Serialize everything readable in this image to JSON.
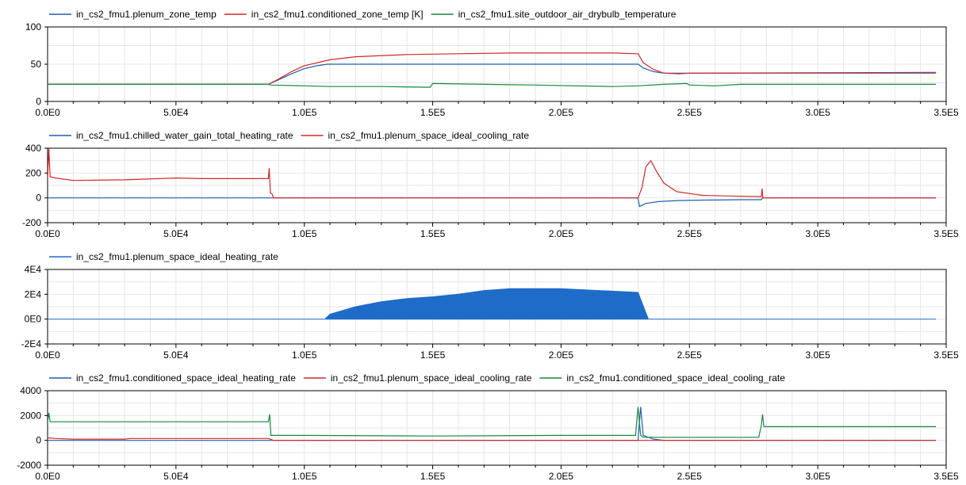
{
  "chart_data": [
    {
      "type": "line",
      "legend_placement": "top-left",
      "grid": true,
      "xlim": [
        0,
        350000
      ],
      "ylim": [
        0,
        100
      ],
      "xticks": [
        "0.0E0",
        "5.0E4",
        "1.0E5",
        "1.5E5",
        "2.0E5",
        "2.5E5",
        "3.0E5",
        "3.5E5"
      ],
      "yticks": [
        "0",
        "50",
        "100"
      ],
      "series": [
        {
          "name": "in_cs2_fmu1.plenum_zone_temp",
          "color": "#1f5fae",
          "x": [
            0,
            86000,
            88000,
            95000,
            100000,
            105000,
            109000,
            150000,
            200000,
            230000,
            232000,
            236000,
            240000,
            246000,
            250000,
            346000
          ],
          "y": [
            23,
            23,
            26,
            37,
            44,
            48,
            50,
            50,
            50,
            50,
            45,
            40,
            38,
            38,
            38,
            38
          ]
        },
        {
          "name": "in_cs2_fmu1.conditioned_zone_temp [K]",
          "color": "#d62728",
          "x": [
            0,
            86000,
            90000,
            95000,
            100000,
            110000,
            120000,
            140000,
            160000,
            180000,
            200000,
            220000,
            230000,
            232000,
            236000,
            240000,
            246000,
            250000,
            346000
          ],
          "y": [
            23,
            23,
            30,
            40,
            48,
            56,
            60,
            63,
            64,
            65,
            65,
            65,
            64,
            52,
            43,
            38,
            37,
            38,
            39
          ]
        },
        {
          "name": "in_cs2_fmu1.site_outdoor_air_drybulb_temperature",
          "color": "#148a3c",
          "x": [
            0,
            86000,
            87000,
            100000,
            110000,
            130000,
            149000,
            150000,
            170000,
            190000,
            220000,
            230000,
            240000,
            249000,
            250000,
            260000,
            270000,
            300000,
            346000
          ],
          "y": [
            23,
            23,
            22,
            21,
            20,
            20,
            19,
            24,
            23,
            22,
            20,
            21,
            23,
            24,
            22,
            21,
            23,
            23,
            23
          ]
        }
      ]
    },
    {
      "type": "line",
      "legend_placement": "top-left",
      "grid": true,
      "xlim": [
        0,
        350000
      ],
      "ylim": [
        -200,
        400
      ],
      "xticks": [
        "0.0E0",
        "5.0E4",
        "1.0E5",
        "1.5E5",
        "2.0E5",
        "2.5E5",
        "3.0E5",
        "3.5E5"
      ],
      "yticks": [
        "-200",
        "0",
        "200",
        "400"
      ],
      "series": [
        {
          "name": "in_cs2_fmu1.chilled_water_gain_total_heating_rate",
          "color": "#1f5fae",
          "x": [
            0,
            230000,
            230500,
            233000,
            238000,
            245000,
            255000,
            270000,
            278000,
            278500,
            346000
          ],
          "y": [
            0,
            0,
            -70,
            -45,
            -30,
            -22,
            -18,
            -15,
            -15,
            0,
            0
          ]
        },
        {
          "name": "in_cs2_fmu1.plenum_space_ideal_cooling_rate",
          "color": "#d62728",
          "x": [
            0,
            500,
            1000,
            3000,
            10000,
            30000,
            50000,
            60000,
            86000,
            86300,
            86800,
            87500,
            88000,
            230000,
            231500,
            233000,
            235000,
            237000,
            240000,
            245000,
            255000,
            265000,
            278000,
            278300,
            278600,
            346000
          ],
          "y": [
            150,
            400,
            170,
            160,
            140,
            145,
            160,
            155,
            155,
            240,
            40,
            30,
            0,
            0,
            80,
            250,
            300,
            220,
            120,
            50,
            20,
            15,
            10,
            75,
            0,
            0
          ]
        }
      ]
    },
    {
      "type": "area",
      "legend_placement": "top-left",
      "grid": true,
      "xlim": [
        0,
        350000
      ],
      "ylim": [
        -20000,
        40000
      ],
      "xticks": [
        "0.0E0",
        "5.0E4",
        "1.0E5",
        "1.5E5",
        "2.0E5",
        "2.5E5",
        "3.0E5",
        "3.5E5"
      ],
      "yticks": [
        "-2E4",
        "0E0",
        "2E4",
        "4E4"
      ],
      "series": [
        {
          "name": "in_cs2_fmu1.plenum_space_ideal_heating_rate",
          "color": "#1f6cc8",
          "x": [
            0,
            86000,
            108000,
            110000,
            120000,
            130000,
            140000,
            150000,
            160000,
            170000,
            180000,
            190000,
            200000,
            210000,
            220000,
            230000,
            234000,
            346000
          ],
          "y": [
            0,
            0,
            0,
            4000,
            10000,
            14000,
            16500,
            18000,
            20000,
            23000,
            24500,
            24500,
            24500,
            23500,
            22500,
            21500,
            0,
            0
          ]
        }
      ]
    },
    {
      "type": "line",
      "legend_placement": "top-left",
      "grid": true,
      "xlim": [
        0,
        350000
      ],
      "ylim": [
        -2000,
        4000
      ],
      "xticks": [
        "0.0E0",
        "5.0E4",
        "1.0E5",
        "1.5E5",
        "2.0E5",
        "2.5E5",
        "3.0E5",
        "3.5E5"
      ],
      "yticks": [
        "-2000",
        "0",
        "2000",
        "4000"
      ],
      "series": [
        {
          "name": "in_cs2_fmu1.conditioned_space_ideal_heating_rate",
          "color": "#1f5fae",
          "x": [
            0,
            230000,
            231000,
            232000,
            236000,
            240000,
            346000
          ],
          "y": [
            0,
            0,
            2700,
            400,
            100,
            0,
            0
          ]
        },
        {
          "name": "in_cs2_fmu1.plenum_space_ideal_cooling_rate",
          "color": "#d62728",
          "x": [
            0,
            3000,
            10000,
            30000,
            32000,
            86000,
            88000,
            346000
          ],
          "y": [
            200,
            150,
            100,
            100,
            150,
            150,
            0,
            0
          ]
        },
        {
          "name": "in_cs2_fmu1.conditioned_space_ideal_cooling_rate",
          "color": "#148a3c",
          "x": [
            0,
            500,
            1000,
            86000,
            86500,
            87000,
            100000,
            150000,
            200000,
            229000,
            230000,
            231000,
            232000,
            250000,
            277000,
            278000,
            278500,
            279000,
            346000
          ],
          "y": [
            1500,
            2200,
            1500,
            1500,
            2100,
            400,
            400,
            350,
            400,
            400,
            2700,
            400,
            250,
            250,
            250,
            1200,
            2100,
            1100,
            1100
          ]
        }
      ]
    }
  ]
}
